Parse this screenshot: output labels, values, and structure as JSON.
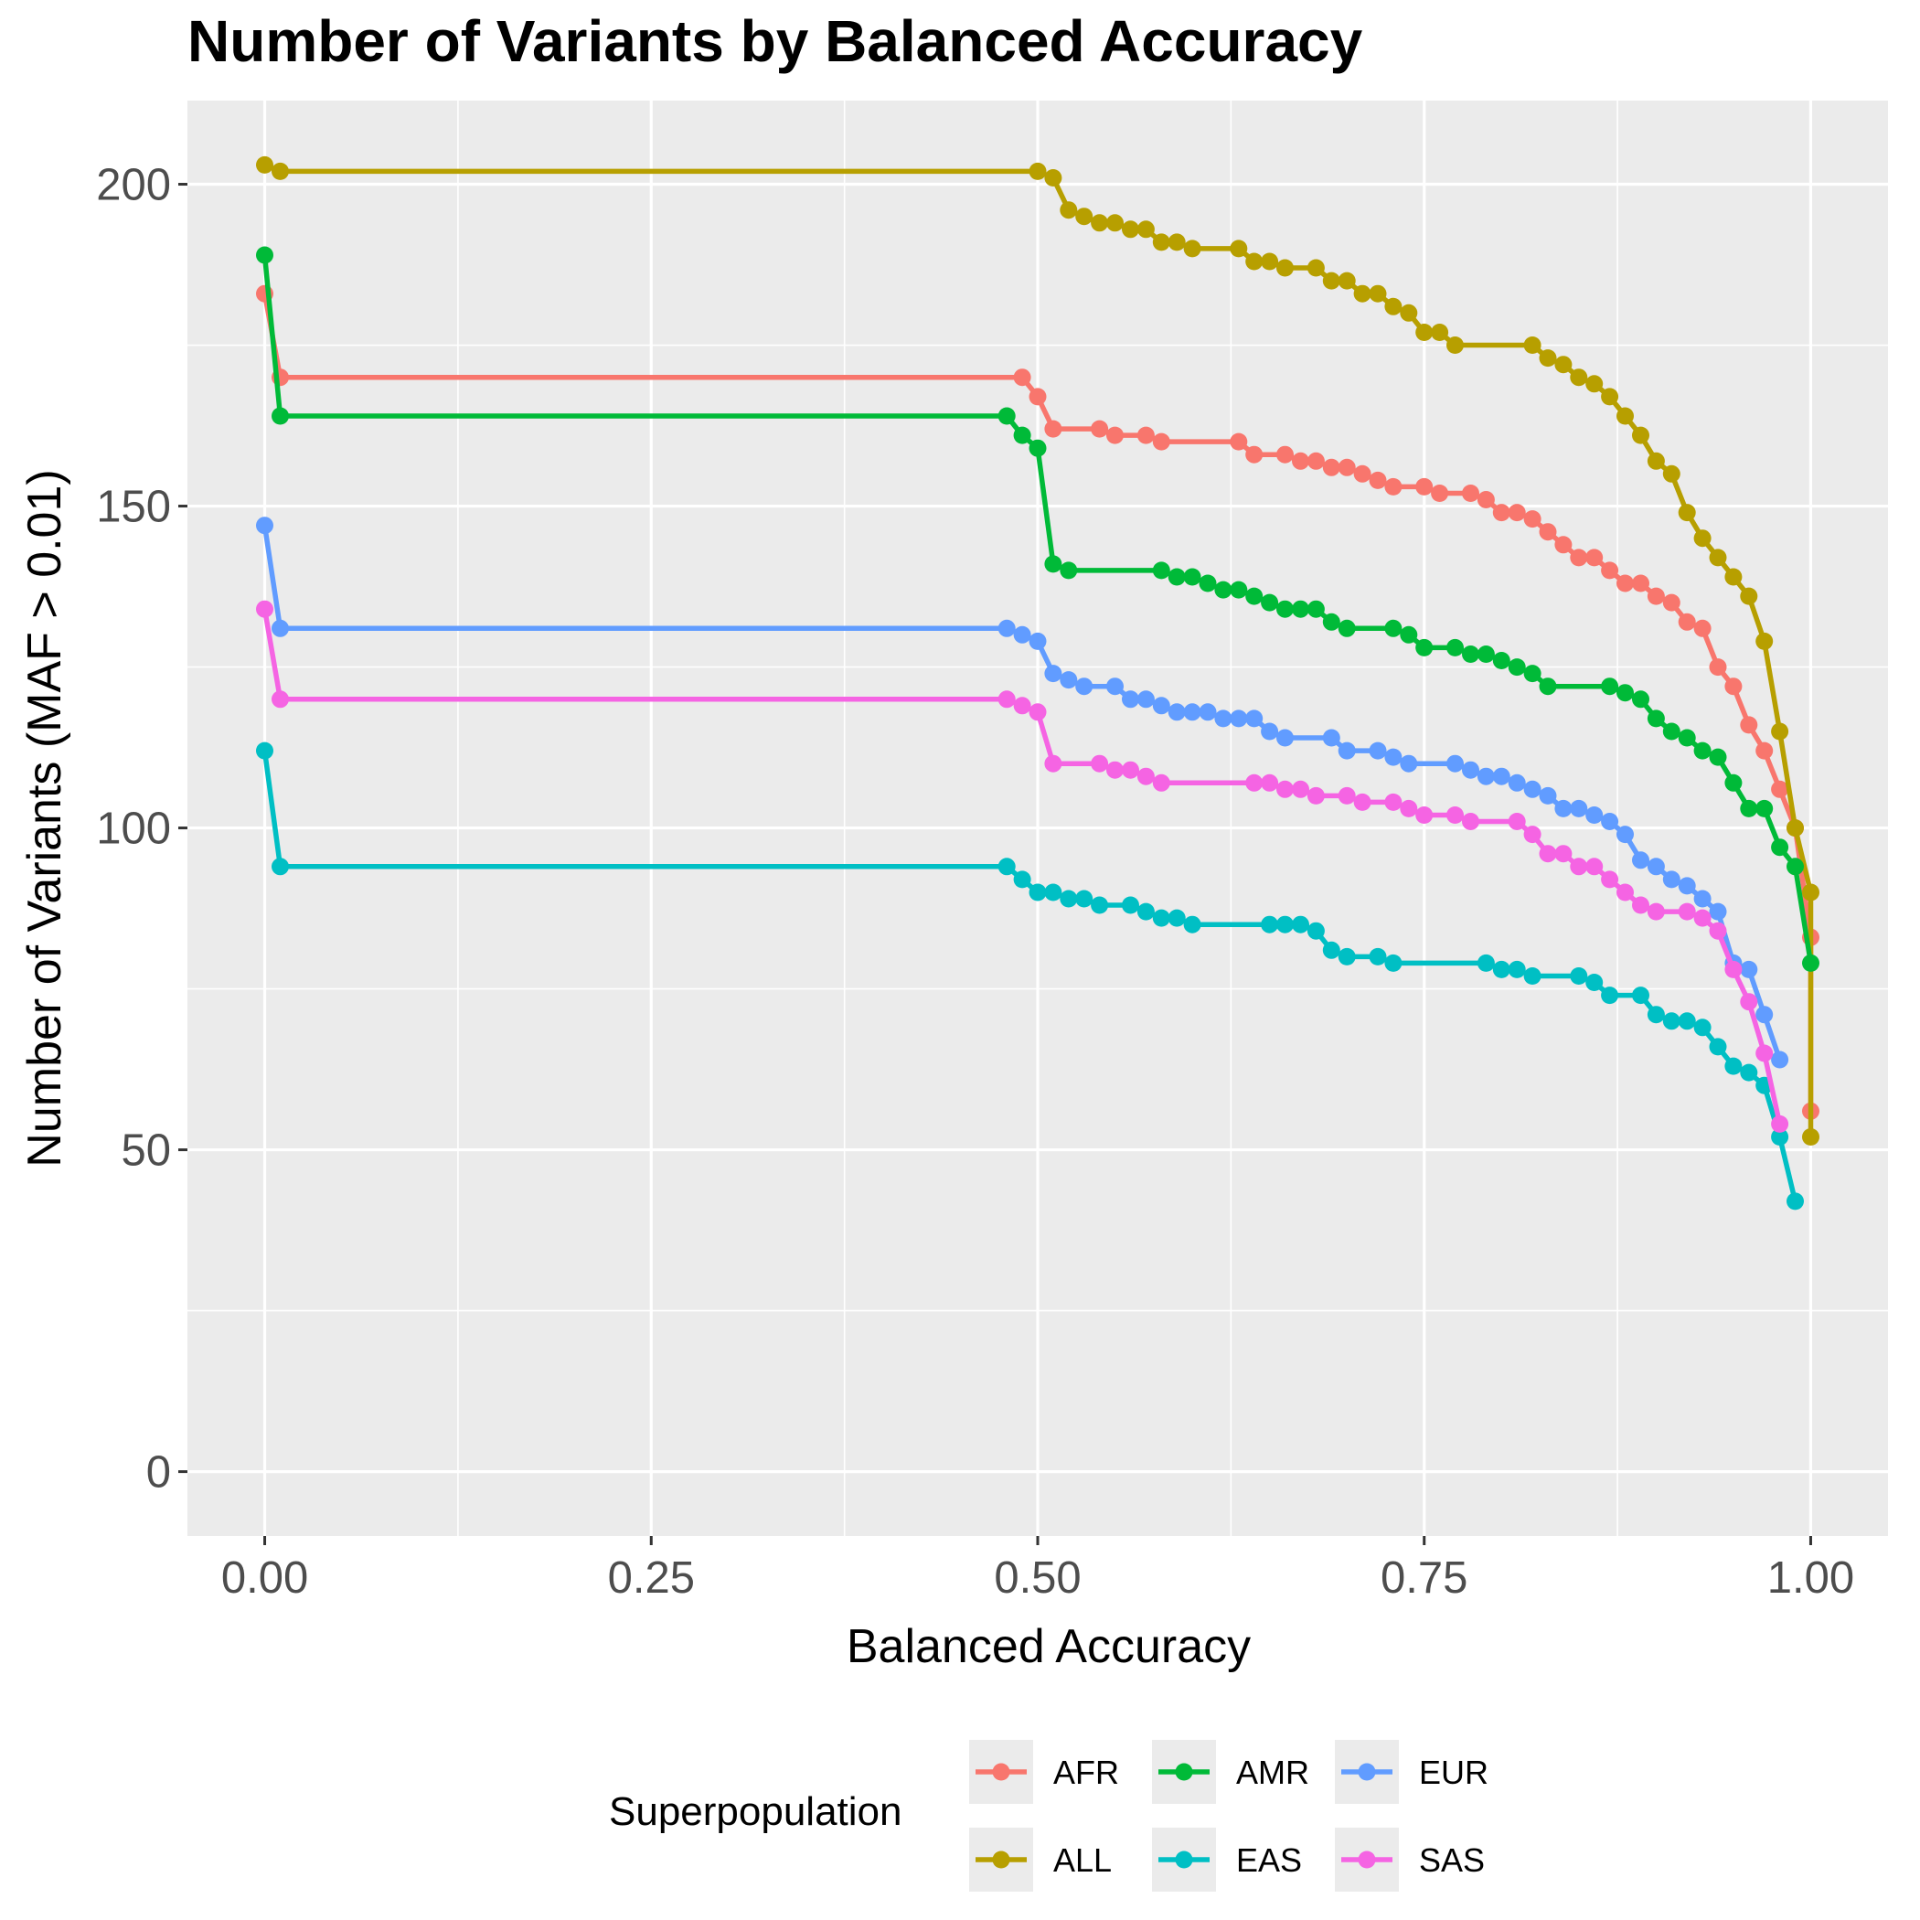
{
  "chart_data": {
    "type": "line",
    "title": "Number of Variants by Balanced Accuracy",
    "xlabel": "Balanced Accuracy",
    "ylabel": "Number of Variants (MAF > 0.01)",
    "xlim": [
      -0.05,
      1.05
    ],
    "ylim": [
      -10,
      213
    ],
    "x_ticks": [
      "0.00",
      "0.25",
      "0.50",
      "0.75",
      "1.00"
    ],
    "y_ticks": [
      "0",
      "50",
      "100",
      "150",
      "200"
    ],
    "grid": true,
    "markers": true,
    "legend_title": "Superpopulation",
    "legend_position": "bottom",
    "series": [
      {
        "name": "AFR",
        "color": "#F8766D",
        "points": [
          [
            0,
            183
          ],
          [
            0.01,
            170
          ],
          [
            0.49,
            170
          ],
          [
            0.5,
            167
          ],
          [
            0.51,
            162
          ],
          [
            0.54,
            162
          ],
          [
            0.55,
            161
          ],
          [
            0.57,
            161
          ],
          [
            0.58,
            160
          ],
          [
            0.63,
            160
          ],
          [
            0.64,
            158
          ],
          [
            0.66,
            158
          ],
          [
            0.67,
            157
          ],
          [
            0.68,
            157
          ],
          [
            0.69,
            156
          ],
          [
            0.7,
            156
          ],
          [
            0.71,
            155
          ],
          [
            0.72,
            154
          ],
          [
            0.73,
            153
          ],
          [
            0.75,
            153
          ],
          [
            0.76,
            152
          ],
          [
            0.78,
            152
          ],
          [
            0.79,
            151
          ],
          [
            0.8,
            149
          ],
          [
            0.81,
            149
          ],
          [
            0.82,
            148
          ],
          [
            0.83,
            146
          ],
          [
            0.84,
            144
          ],
          [
            0.85,
            142
          ],
          [
            0.86,
            142
          ],
          [
            0.87,
            140
          ],
          [
            0.88,
            138
          ],
          [
            0.89,
            138
          ],
          [
            0.9,
            136
          ],
          [
            0.91,
            135
          ],
          [
            0.92,
            132
          ],
          [
            0.93,
            131
          ],
          [
            0.94,
            125
          ],
          [
            0.95,
            122
          ],
          [
            0.96,
            116
          ],
          [
            0.97,
            112
          ],
          [
            0.98,
            106
          ],
          [
            0.99,
            100
          ],
          [
            1.0,
            83
          ],
          [
            1.0,
            56
          ]
        ]
      },
      {
        "name": "ALL",
        "color": "#B79F00",
        "points": [
          [
            0,
            203
          ],
          [
            0.01,
            202
          ],
          [
            0.5,
            202
          ],
          [
            0.51,
            201
          ],
          [
            0.52,
            196
          ],
          [
            0.53,
            195
          ],
          [
            0.54,
            194
          ],
          [
            0.55,
            194
          ],
          [
            0.56,
            193
          ],
          [
            0.57,
            193
          ],
          [
            0.58,
            191
          ],
          [
            0.59,
            191
          ],
          [
            0.6,
            190
          ],
          [
            0.63,
            190
          ],
          [
            0.64,
            188
          ],
          [
            0.65,
            188
          ],
          [
            0.66,
            187
          ],
          [
            0.68,
            187
          ],
          [
            0.69,
            185
          ],
          [
            0.7,
            185
          ],
          [
            0.71,
            183
          ],
          [
            0.72,
            183
          ],
          [
            0.73,
            181
          ],
          [
            0.74,
            180
          ],
          [
            0.75,
            177
          ],
          [
            0.76,
            177
          ],
          [
            0.77,
            175
          ],
          [
            0.82,
            175
          ],
          [
            0.83,
            173
          ],
          [
            0.84,
            172
          ],
          [
            0.85,
            170
          ],
          [
            0.86,
            169
          ],
          [
            0.87,
            167
          ],
          [
            0.88,
            164
          ],
          [
            0.89,
            161
          ],
          [
            0.9,
            157
          ],
          [
            0.91,
            155
          ],
          [
            0.92,
            149
          ],
          [
            0.93,
            145
          ],
          [
            0.94,
            142
          ],
          [
            0.95,
            139
          ],
          [
            0.96,
            136
          ],
          [
            0.97,
            129
          ],
          [
            0.98,
            115
          ],
          [
            0.99,
            100
          ],
          [
            1.0,
            90
          ],
          [
            1.0,
            52
          ]
        ]
      },
      {
        "name": "AMR",
        "color": "#00BA38",
        "points": [
          [
            0,
            189
          ],
          [
            0.01,
            164
          ],
          [
            0.48,
            164
          ],
          [
            0.49,
            161
          ],
          [
            0.5,
            159
          ],
          [
            0.51,
            141
          ],
          [
            0.52,
            140
          ],
          [
            0.58,
            140
          ],
          [
            0.59,
            139
          ],
          [
            0.6,
            139
          ],
          [
            0.61,
            138
          ],
          [
            0.62,
            137
          ],
          [
            0.63,
            137
          ],
          [
            0.64,
            136
          ],
          [
            0.65,
            135
          ],
          [
            0.66,
            134
          ],
          [
            0.67,
            134
          ],
          [
            0.68,
            134
          ],
          [
            0.69,
            132
          ],
          [
            0.7,
            131
          ],
          [
            0.73,
            131
          ],
          [
            0.74,
            130
          ],
          [
            0.75,
            128
          ],
          [
            0.77,
            128
          ],
          [
            0.78,
            127
          ],
          [
            0.79,
            127
          ],
          [
            0.8,
            126
          ],
          [
            0.81,
            125
          ],
          [
            0.82,
            124
          ],
          [
            0.83,
            122
          ],
          [
            0.87,
            122
          ],
          [
            0.88,
            121
          ],
          [
            0.89,
            120
          ],
          [
            0.9,
            117
          ],
          [
            0.91,
            115
          ],
          [
            0.92,
            114
          ],
          [
            0.93,
            112
          ],
          [
            0.94,
            111
          ],
          [
            0.95,
            107
          ],
          [
            0.96,
            103
          ],
          [
            0.97,
            103
          ],
          [
            0.98,
            97
          ],
          [
            0.99,
            94
          ],
          [
            1.0,
            79
          ]
        ]
      },
      {
        "name": "EAS",
        "color": "#00BFC4",
        "points": [
          [
            0,
            112
          ],
          [
            0.01,
            94
          ],
          [
            0.48,
            94
          ],
          [
            0.49,
            92
          ],
          [
            0.5,
            90
          ],
          [
            0.51,
            90
          ],
          [
            0.52,
            89
          ],
          [
            0.53,
            89
          ],
          [
            0.54,
            88
          ],
          [
            0.56,
            88
          ],
          [
            0.57,
            87
          ],
          [
            0.58,
            86
          ],
          [
            0.59,
            86
          ],
          [
            0.6,
            85
          ],
          [
            0.65,
            85
          ],
          [
            0.66,
            85
          ],
          [
            0.67,
            85
          ],
          [
            0.68,
            84
          ],
          [
            0.69,
            81
          ],
          [
            0.7,
            80
          ],
          [
            0.72,
            80
          ],
          [
            0.73,
            79
          ],
          [
            0.79,
            79
          ],
          [
            0.8,
            78
          ],
          [
            0.81,
            78
          ],
          [
            0.82,
            77
          ],
          [
            0.85,
            77
          ],
          [
            0.86,
            76
          ],
          [
            0.87,
            74
          ],
          [
            0.89,
            74
          ],
          [
            0.9,
            71
          ],
          [
            0.91,
            70
          ],
          [
            0.92,
            70
          ],
          [
            0.93,
            69
          ],
          [
            0.94,
            66
          ],
          [
            0.95,
            63
          ],
          [
            0.96,
            62
          ],
          [
            0.97,
            60
          ],
          [
            0.98,
            52
          ],
          [
            0.99,
            42
          ]
        ]
      },
      {
        "name": "EUR",
        "color": "#619CFF",
        "points": [
          [
            0,
            147
          ],
          [
            0.01,
            131
          ],
          [
            0.48,
            131
          ],
          [
            0.49,
            130
          ],
          [
            0.5,
            129
          ],
          [
            0.51,
            124
          ],
          [
            0.52,
            123
          ],
          [
            0.53,
            122
          ],
          [
            0.55,
            122
          ],
          [
            0.56,
            120
          ],
          [
            0.57,
            120
          ],
          [
            0.58,
            119
          ],
          [
            0.59,
            118
          ],
          [
            0.6,
            118
          ],
          [
            0.61,
            118
          ],
          [
            0.62,
            117
          ],
          [
            0.63,
            117
          ],
          [
            0.64,
            117
          ],
          [
            0.65,
            115
          ],
          [
            0.66,
            114
          ],
          [
            0.69,
            114
          ],
          [
            0.7,
            112
          ],
          [
            0.72,
            112
          ],
          [
            0.73,
            111
          ],
          [
            0.74,
            110
          ],
          [
            0.77,
            110
          ],
          [
            0.78,
            109
          ],
          [
            0.79,
            108
          ],
          [
            0.8,
            108
          ],
          [
            0.81,
            107
          ],
          [
            0.82,
            106
          ],
          [
            0.83,
            105
          ],
          [
            0.84,
            103
          ],
          [
            0.85,
            103
          ],
          [
            0.86,
            102
          ],
          [
            0.87,
            101
          ],
          [
            0.88,
            99
          ],
          [
            0.89,
            95
          ],
          [
            0.9,
            94
          ],
          [
            0.91,
            92
          ],
          [
            0.92,
            91
          ],
          [
            0.93,
            89
          ],
          [
            0.94,
            87
          ],
          [
            0.95,
            79
          ],
          [
            0.96,
            78
          ],
          [
            0.97,
            71
          ],
          [
            0.98,
            64
          ]
        ]
      },
      {
        "name": "SAS",
        "color": "#F564E3",
        "points": [
          [
            0,
            134
          ],
          [
            0.01,
            120
          ],
          [
            0.48,
            120
          ],
          [
            0.49,
            119
          ],
          [
            0.5,
            118
          ],
          [
            0.51,
            110
          ],
          [
            0.54,
            110
          ],
          [
            0.55,
            109
          ],
          [
            0.56,
            109
          ],
          [
            0.57,
            108
          ],
          [
            0.58,
            107
          ],
          [
            0.64,
            107
          ],
          [
            0.65,
            107
          ],
          [
            0.66,
            106
          ],
          [
            0.67,
            106
          ],
          [
            0.68,
            105
          ],
          [
            0.7,
            105
          ],
          [
            0.71,
            104
          ],
          [
            0.73,
            104
          ],
          [
            0.74,
            103
          ],
          [
            0.75,
            102
          ],
          [
            0.77,
            102
          ],
          [
            0.78,
            101
          ],
          [
            0.81,
            101
          ],
          [
            0.82,
            99
          ],
          [
            0.83,
            96
          ],
          [
            0.84,
            96
          ],
          [
            0.85,
            94
          ],
          [
            0.86,
            94
          ],
          [
            0.87,
            92
          ],
          [
            0.88,
            90
          ],
          [
            0.89,
            88
          ],
          [
            0.9,
            87
          ],
          [
            0.92,
            87
          ],
          [
            0.93,
            86
          ],
          [
            0.94,
            84
          ],
          [
            0.95,
            78
          ],
          [
            0.96,
            73
          ],
          [
            0.97,
            65
          ],
          [
            0.98,
            54
          ]
        ]
      }
    ]
  },
  "legend": [
    {
      "name": "AFR",
      "color": "#F8766D"
    },
    {
      "name": "AMR",
      "color": "#00BA38"
    },
    {
      "name": "EUR",
      "color": "#619CFF"
    },
    {
      "name": "ALL",
      "color": "#B79F00"
    },
    {
      "name": "EAS",
      "color": "#00BFC4"
    },
    {
      "name": "SAS",
      "color": "#F564E3"
    }
  ]
}
